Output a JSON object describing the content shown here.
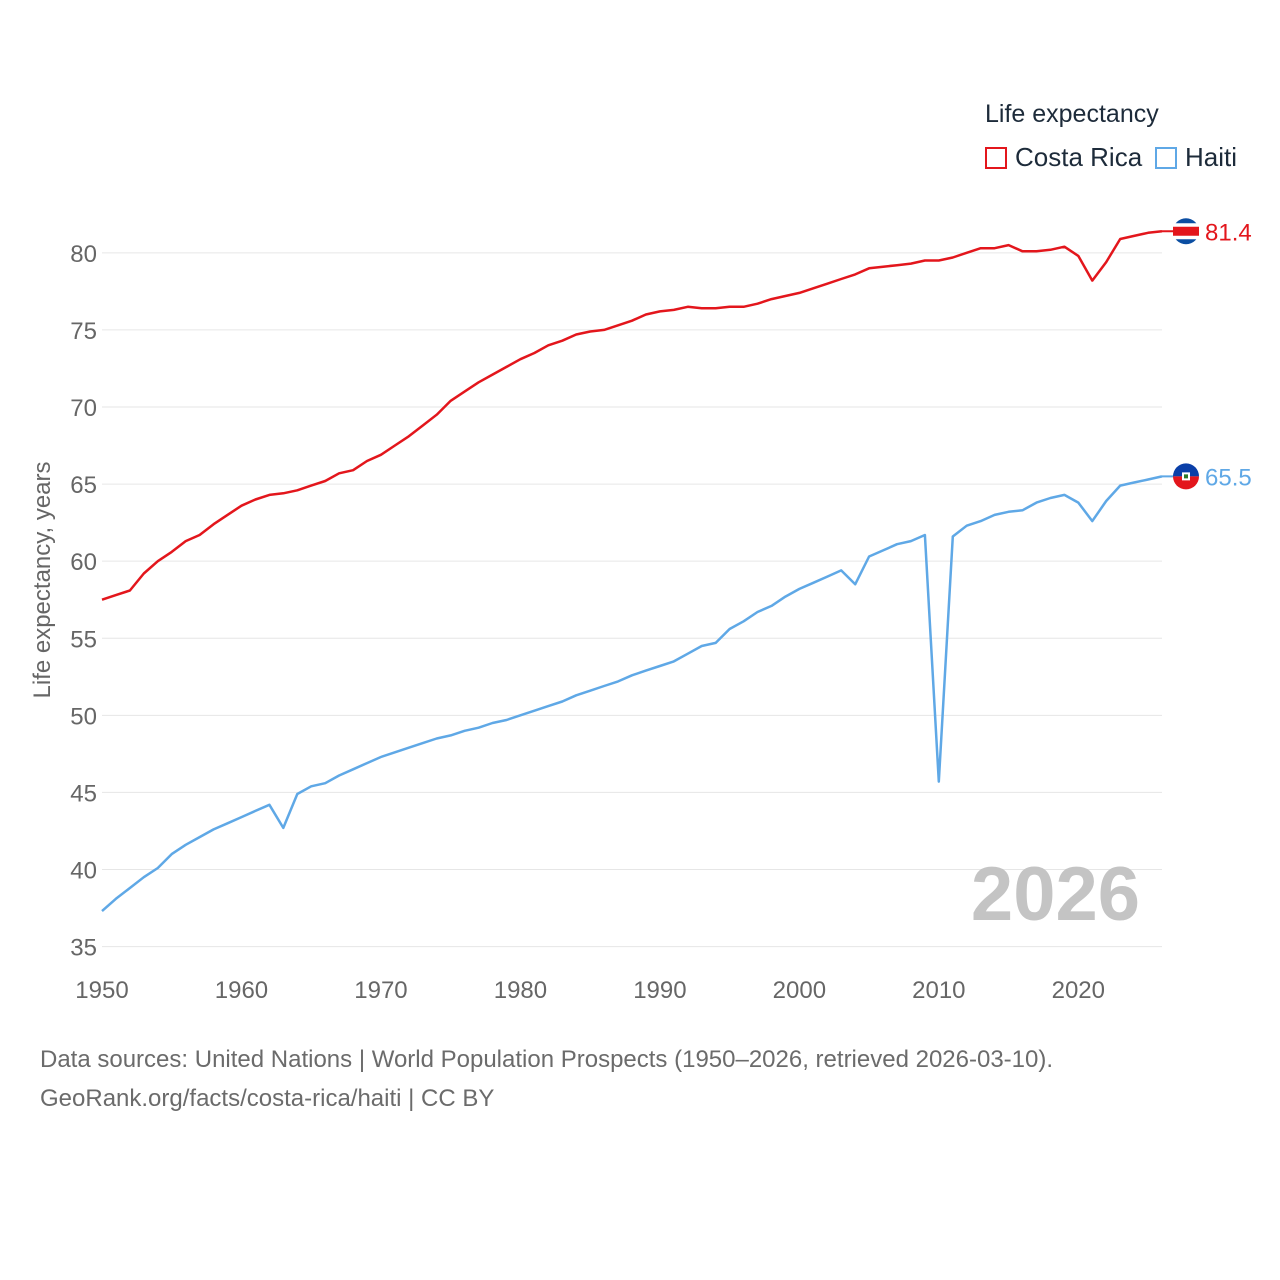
{
  "legend": {
    "title": "Life expectancy",
    "items": [
      {
        "label": "Costa Rica",
        "color": "#e3161c"
      },
      {
        "label": "Haiti",
        "color": "#5fa8e6"
      }
    ]
  },
  "source": {
    "line1": "Data sources: United Nations | World Population Prospects (1950–2026, retrieved 2026-03-10).",
    "line2": "GeoRank.org/facts/costa-rica/haiti | CC BY"
  },
  "chart_data": {
    "type": "line",
    "ylabel": "Life expectancy, years",
    "xlabel": "",
    "ylim": [
      34,
      82
    ],
    "xlim": [
      1950,
      2026
    ],
    "yticks": [
      35,
      40,
      45,
      50,
      55,
      60,
      65,
      70,
      75,
      80
    ],
    "xticks": [
      1950,
      1960,
      1970,
      1980,
      1990,
      2000,
      2010,
      2020
    ],
    "year_label": "2026",
    "grid": true,
    "x": [
      1950,
      1951,
      1952,
      1953,
      1954,
      1955,
      1956,
      1957,
      1958,
      1959,
      1960,
      1961,
      1962,
      1963,
      1964,
      1965,
      1966,
      1967,
      1968,
      1969,
      1970,
      1971,
      1972,
      1973,
      1974,
      1975,
      1976,
      1977,
      1978,
      1979,
      1980,
      1981,
      1982,
      1983,
      1984,
      1985,
      1986,
      1987,
      1988,
      1989,
      1990,
      1991,
      1992,
      1993,
      1994,
      1995,
      1996,
      1997,
      1998,
      1999,
      2000,
      2001,
      2002,
      2003,
      2004,
      2005,
      2006,
      2007,
      2008,
      2009,
      2010,
      2011,
      2012,
      2013,
      2014,
      2015,
      2016,
      2017,
      2018,
      2019,
      2020,
      2021,
      2022,
      2023,
      2024,
      2025,
      2026
    ],
    "series": [
      {
        "name": "Costa Rica",
        "color": "#e3161c",
        "end_label": "81.4",
        "values": [
          57.5,
          57.8,
          58.1,
          59.2,
          60.0,
          60.6,
          61.3,
          61.7,
          62.4,
          63.0,
          63.6,
          64.0,
          64.3,
          64.4,
          64.6,
          64.9,
          65.2,
          65.7,
          65.9,
          66.5,
          66.9,
          67.5,
          68.1,
          68.8,
          69.5,
          70.4,
          71.0,
          71.6,
          72.1,
          72.6,
          73.1,
          73.5,
          74.0,
          74.3,
          74.7,
          74.9,
          75.0,
          75.3,
          75.6,
          76.0,
          76.2,
          76.3,
          76.5,
          76.4,
          76.4,
          76.5,
          76.5,
          76.7,
          77.0,
          77.2,
          77.4,
          77.7,
          78.0,
          78.3,
          78.6,
          79.0,
          79.1,
          79.2,
          79.3,
          79.5,
          79.5,
          79.7,
          80.0,
          80.3,
          80.3,
          80.5,
          80.1,
          80.1,
          80.2,
          80.4,
          79.8,
          78.2,
          79.4,
          80.9,
          81.1,
          81.3,
          81.4
        ]
      },
      {
        "name": "Haiti",
        "color": "#5fa8e6",
        "end_label": "65.5",
        "values": [
          37.3,
          38.1,
          38.8,
          39.5,
          40.1,
          41.0,
          41.6,
          42.1,
          42.6,
          43.0,
          43.4,
          43.8,
          44.2,
          42.7,
          44.9,
          45.4,
          45.6,
          46.1,
          46.5,
          46.9,
          47.3,
          47.6,
          47.9,
          48.2,
          48.5,
          48.7,
          49.0,
          49.2,
          49.5,
          49.7,
          50.0,
          50.3,
          50.6,
          50.9,
          51.3,
          51.6,
          51.9,
          52.2,
          52.6,
          52.9,
          53.2,
          53.5,
          54.0,
          54.5,
          54.7,
          55.6,
          56.1,
          56.7,
          57.1,
          57.7,
          58.2,
          58.6,
          59.0,
          59.4,
          58.5,
          60.3,
          60.7,
          61.1,
          61.3,
          61.7,
          45.7,
          61.6,
          62.3,
          62.6,
          63.0,
          63.2,
          63.3,
          63.8,
          64.1,
          64.3,
          63.8,
          62.6,
          63.9,
          64.9,
          65.1,
          65.3,
          65.5
        ]
      }
    ]
  }
}
